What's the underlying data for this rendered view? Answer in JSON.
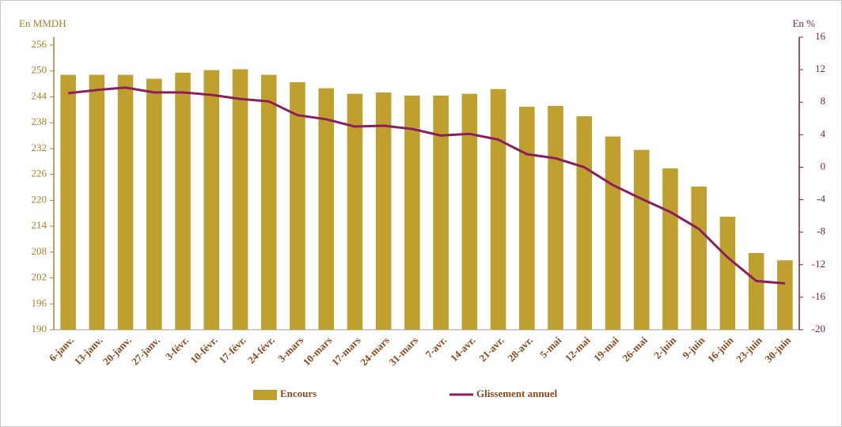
{
  "chart_data": {
    "type": "bar",
    "y_label": "En MMDH",
    "y2_label": "En %",
    "categories": [
      "6-janv.",
      "13-janv.",
      "20-janv.",
      "27-janv.",
      "3-févr.",
      "10-févr.",
      "17-févr.",
      "24-févr.",
      "3-mars",
      "10-mars",
      "17-mars",
      "24-mars",
      "31-mars",
      "7-avr.",
      "14-avr.",
      "21-avr.",
      "28-avr.",
      "5-mai",
      "12-mai",
      "19-mai",
      "26-mai",
      "2-juin",
      "9-juin",
      "16-juin",
      "23-juin",
      "30-juin"
    ],
    "series": [
      {
        "name": "Encours",
        "type": "bar",
        "color": "#bfa02e",
        "values": [
          249.1,
          249.1,
          249.1,
          248.2,
          249.6,
          250.2,
          250.4,
          249.1,
          247.4,
          246.0,
          244.7,
          245.0,
          244.3,
          244.3,
          244.7,
          245.8,
          241.7,
          241.9,
          239.5,
          234.8,
          231.7,
          227.4,
          223.2,
          216.2,
          207.8,
          206.1
        ]
      },
      {
        "name": "Glissement annuel",
        "type": "line",
        "axis": "y2",
        "color": "#8b1f5c",
        "values": [
          9.1,
          9.5,
          9.8,
          9.2,
          9.2,
          8.9,
          8.4,
          8.1,
          6.4,
          5.9,
          5.0,
          5.1,
          4.7,
          3.9,
          4.1,
          3.4,
          1.6,
          1.1,
          0.0,
          -2.2,
          -3.9,
          -5.5,
          -7.6,
          -11.1,
          -14.0,
          -14.3
        ]
      }
    ],
    "ylim": [
      190,
      256
    ],
    "yticks": [
      190,
      196,
      202,
      208,
      214,
      220,
      226,
      232,
      238,
      244,
      250,
      256
    ],
    "y2lim": [
      -20,
      16
    ],
    "y2ticks": [
      -20,
      -16,
      -12,
      -8,
      -4,
      0,
      4,
      8,
      12,
      16
    ],
    "grid": false
  }
}
